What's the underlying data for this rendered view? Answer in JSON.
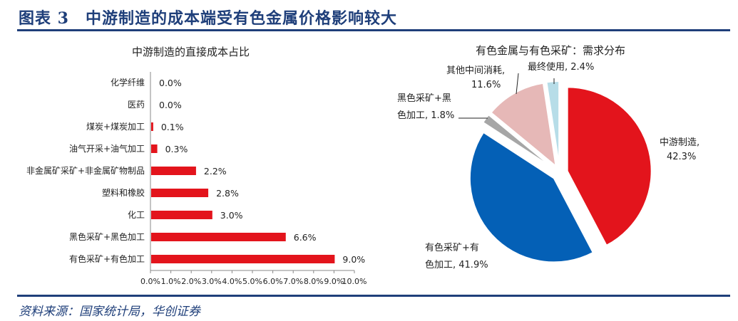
{
  "header": {
    "title": "图表 3　中游制造的成本端受有色金属价格影响较大"
  },
  "footer": {
    "source": "资料来源：国家统计局，华创证券"
  },
  "colors": {
    "accent": "#1f3f7a",
    "bar": "#e3141c"
  },
  "chart_data": [
    {
      "type": "bar",
      "orientation": "horizontal",
      "title": "中游制造的直接成本占比",
      "categories": [
        "化学纤维",
        "医药",
        "煤炭+煤炭加工",
        "油气开采+油气加工",
        "非金属矿采矿+非金属矿物制品",
        "塑料和橡胶",
        "化工",
        "黑色采矿+黑色加工",
        "有色采矿+有色加工"
      ],
      "values": [
        0.0,
        0.0,
        0.1,
        0.3,
        2.2,
        2.8,
        3.0,
        6.6,
        9.0
      ],
      "data_labels": [
        "0.0%",
        "0.0%",
        "0.1%",
        "0.3%",
        "2.2%",
        "2.8%",
        "3.0%",
        "6.6%",
        "9.0%"
      ],
      "xlim": [
        0,
        10
      ],
      "xticks": [
        "0.0%",
        "1.0%",
        "2.0%",
        "3.0%",
        "4.0%",
        "5.0%",
        "6.0%",
        "7.0%",
        "8.0%",
        "9.0%",
        "10.0%"
      ],
      "color": "#e3141c",
      "grid": false
    },
    {
      "type": "pie",
      "title": "有色金属与有色采矿：需求分布",
      "slices": [
        {
          "name": "中游制造",
          "value": 42.3,
          "label": [
            "中游制造,",
            "42.3%"
          ],
          "color": "#e3141c"
        },
        {
          "name": "有色采矿+有色加工",
          "value": 41.9,
          "label": [
            "有色采矿+有",
            "色加工, 41.9%"
          ],
          "color": "#0460b6"
        },
        {
          "name": "黑色采矿+黑色加工",
          "value": 1.8,
          "label": [
            "黑色采矿+黑",
            "色加工, 1.8%"
          ],
          "color": "#a6a6a6"
        },
        {
          "name": "其他中间消耗",
          "value": 11.6,
          "label": [
            "其他中间消耗,",
            "11.6%"
          ],
          "color": "#e6b8b7"
        },
        {
          "name": "最终使用",
          "value": 2.4,
          "label": [
            "最终使用, 2.4%"
          ],
          "color": "#b7dde8"
        }
      ]
    }
  ]
}
